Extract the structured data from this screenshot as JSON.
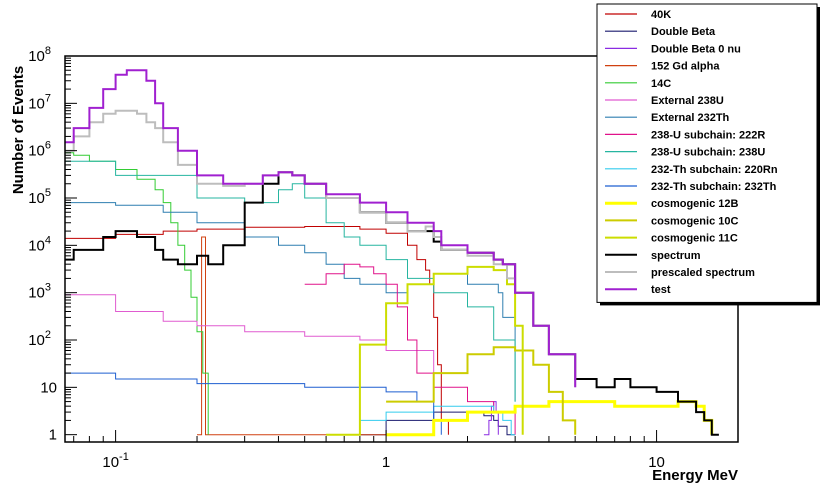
{
  "chart_data": {
    "type": "line",
    "title": "",
    "xlabel": "Energy MeV",
    "ylabel": "Number of Events",
    "xscale": "log",
    "yscale": "log",
    "xlim": [
      0.065,
      20
    ],
    "ylim": [
      0.7,
      100000000
    ],
    "x_ticks": [
      {
        "value": 0.1,
        "base": "10",
        "exp": "-1"
      },
      {
        "value": 1,
        "base": "1",
        "exp": ""
      },
      {
        "value": 10,
        "base": "10",
        "exp": ""
      }
    ],
    "y_ticks": [
      {
        "value": 1,
        "base": "1",
        "exp": ""
      },
      {
        "value": 10,
        "base": "10",
        "exp": ""
      },
      {
        "value": 100,
        "base": "10",
        "exp": "2"
      },
      {
        "value": 1000,
        "base": "10",
        "exp": "3"
      },
      {
        "value": 10000,
        "base": "10",
        "exp": "4"
      },
      {
        "value": 100000,
        "base": "10",
        "exp": "5"
      },
      {
        "value": 1000000,
        "base": "10",
        "exp": "6"
      },
      {
        "value": 10000000,
        "base": "10",
        "exp": "7"
      },
      {
        "value": 100000000,
        "base": "10",
        "exp": "8"
      }
    ],
    "grid": false,
    "legend_position": "top-right",
    "series": [
      {
        "name": "40K",
        "color": "#c00000",
        "width": 1,
        "x": [
          0.065,
          0.1,
          0.15,
          0.2,
          0.21,
          0.3,
          0.5,
          0.8,
          1.0,
          1.2,
          1.3,
          1.4,
          1.45,
          1.5,
          1.55,
          1.6,
          1.7
        ],
        "y": [
          14000,
          17000,
          20000,
          22000,
          22000,
          24000,
          25000,
          22000,
          18000,
          10000,
          5000,
          3000,
          1500,
          300,
          30,
          2,
          1
        ]
      },
      {
        "name": "Double Beta",
        "color": "#1a1a6e",
        "width": 1,
        "x": [
          0.7,
          1.0,
          1.5,
          2.0,
          2.3,
          2.5,
          2.6,
          2.8,
          3.0
        ],
        "y": [
          1,
          2,
          3,
          3,
          2.5,
          2,
          1.5,
          1,
          1
        ]
      },
      {
        "name": "Double Beta 0 nu",
        "color": "#8a2be2",
        "width": 1,
        "x": [
          2.3,
          2.4,
          2.45,
          2.5,
          2.55,
          2.6
        ],
        "y": [
          1,
          2,
          4,
          5,
          3,
          1
        ]
      },
      {
        "name": "152 Gd alpha",
        "color": "#d04010",
        "width": 1,
        "x": [
          0.2,
          0.205,
          0.208,
          0.212,
          0.215,
          0.22,
          0.3,
          0.5,
          0.8,
          1.0
        ],
        "y": [
          1,
          1,
          15000,
          15000,
          1,
          1,
          1,
          1,
          1,
          1
        ]
      },
      {
        "name": "14C",
        "color": "#33cc33",
        "width": 1,
        "x": [
          0.065,
          0.07,
          0.08,
          0.1,
          0.12,
          0.14,
          0.15,
          0.16,
          0.17,
          0.18,
          0.19,
          0.2,
          0.21,
          0.22
        ],
        "y": [
          900000,
          800000,
          600000,
          400000,
          250000,
          150000,
          80000,
          30000,
          10000,
          3000,
          800,
          150,
          20,
          1
        ]
      },
      {
        "name": "External 238U",
        "color": "#e05bd0",
        "width": 1,
        "x": [
          0.065,
          0.1,
          0.15,
          0.2,
          0.3,
          0.5,
          0.8,
          1.0,
          1.5
        ],
        "y": [
          900,
          400,
          250,
          200,
          150,
          120,
          100,
          60,
          20
        ]
      },
      {
        "name": "External 232Th",
        "color": "#2f7fb0",
        "width": 1,
        "x": [
          0.065,
          0.1,
          0.15,
          0.2,
          0.3,
          0.4,
          0.5,
          0.6,
          0.7,
          0.8,
          1.0,
          1.2,
          1.5,
          2.0,
          2.5,
          2.6,
          2.7,
          3.0
        ],
        "y": [
          80000,
          70000,
          50000,
          30000,
          15000,
          10000,
          7000,
          4000,
          2000,
          1500,
          1000,
          1500,
          2500,
          1500,
          1500,
          1000,
          300,
          5
        ]
      },
      {
        "name": "238-U subchain: 222R",
        "color": "#e0128a",
        "width": 1,
        "x": [
          0.5,
          0.6,
          0.7,
          0.8,
          0.9,
          1.0,
          1.1,
          1.2,
          1.3,
          1.5,
          2.0,
          2.5,
          3.0
        ],
        "y": [
          1500,
          2500,
          4000,
          3500,
          2500,
          1500,
          500,
          100,
          20,
          10,
          5,
          3,
          1
        ]
      },
      {
        "name": "238-U subchain: 238U",
        "color": "#26b5a0",
        "width": 1,
        "x": [
          0.065,
          0.1,
          0.2,
          0.3,
          0.4,
          0.45,
          0.5,
          0.6,
          0.7,
          0.8,
          1.0,
          1.2,
          1.5,
          2.0,
          2.5,
          3.0
        ],
        "y": [
          600000,
          300000,
          100000,
          80000,
          150000,
          200000,
          100000,
          30000,
          15000,
          10000,
          5000,
          2000,
          1000,
          500,
          100,
          5
        ]
      },
      {
        "name": "232-Th subchain: 220Rn",
        "color": "#33ccee",
        "width": 1,
        "x": [
          0.8,
          1.0,
          1.5,
          2.0,
          2.5,
          2.7,
          2.9,
          3.0
        ],
        "y": [
          2,
          3,
          4,
          4,
          3,
          2,
          1,
          1
        ]
      },
      {
        "name": "232-Th subchain: 232Th",
        "color": "#1f5fd0",
        "width": 1,
        "x": [
          0.065,
          0.1,
          0.15,
          0.2,
          0.3,
          0.5,
          0.7,
          1.0,
          1.3,
          1.5,
          1.6
        ],
        "y": [
          20,
          15,
          15,
          12,
          12,
          10,
          10,
          8,
          5,
          2,
          1
        ]
      },
      {
        "name": "cosmogenic 12B",
        "color": "#ffff00",
        "width": 3,
        "x": [
          1.0,
          1.5,
          2.0,
          3.0,
          4.0,
          5.0,
          7.0,
          10.0,
          12.0,
          14.0,
          15.0,
          16.0
        ],
        "y": [
          1,
          2,
          3,
          4,
          5,
          5,
          4,
          4,
          5,
          4,
          2,
          1
        ]
      },
      {
        "name": "cosmogenic 10C",
        "color": "#cccc00",
        "width": 2,
        "x": [
          1.0,
          1.5,
          2.0,
          2.5,
          3.0,
          3.5,
          4.0,
          4.5,
          5.0
        ],
        "y": [
          5,
          20,
          50,
          70,
          60,
          30,
          8,
          2,
          1
        ]
      },
      {
        "name": "cosmogenic 11C",
        "color": "#ccdd00",
        "width": 2,
        "x": [
          0.6,
          0.8,
          1.0,
          1.2,
          1.5,
          2.0,
          2.5,
          2.8,
          3.0,
          3.2
        ],
        "y": [
          1,
          80,
          600,
          1500,
          2500,
          3500,
          3000,
          1500,
          200,
          1
        ]
      },
      {
        "name": "spectrum",
        "color": "#000000",
        "width": 2,
        "x": [
          0.065,
          0.07,
          0.09,
          0.1,
          0.12,
          0.14,
          0.15,
          0.17,
          0.2,
          0.22,
          0.25,
          0.3,
          0.35,
          0.4,
          0.45,
          0.5,
          0.6,
          0.8,
          1.0,
          1.2,
          1.4,
          1.5,
          1.6,
          2.0,
          2.5,
          2.7,
          3.0,
          3.5,
          4.0,
          5.0,
          6.0,
          7.0,
          8.0,
          10.0,
          12.0,
          14.0,
          15.0,
          16.0,
          17.0
        ],
        "y": [
          5000,
          8000,
          15000,
          20000,
          15000,
          8000,
          5000,
          4000,
          6000,
          4000,
          10000,
          80000,
          200000,
          350000,
          300000,
          200000,
          100000,
          50000,
          30000,
          20000,
          20000,
          12000,
          8000,
          7000,
          5000,
          4000,
          1000,
          200,
          50,
          15,
          10,
          15,
          10,
          8,
          5,
          3,
          2,
          1,
          1
        ]
      },
      {
        "name": "prescaled spectrum",
        "color": "#bdbdbd",
        "width": 2,
        "x": [
          0.065,
          0.07,
          0.08,
          0.09,
          0.1,
          0.11,
          0.12,
          0.13,
          0.14,
          0.15,
          0.17,
          0.2,
          0.25,
          0.3,
          0.35,
          0.4,
          0.45,
          0.5,
          0.6,
          0.8,
          1.0,
          1.2,
          1.4,
          1.5,
          1.6,
          2.0,
          2.5,
          2.8,
          3.0,
          3.5,
          4.0,
          5.0
        ],
        "y": [
          1000000,
          2000000,
          4000000,
          6000000,
          7000000,
          7000000,
          6000000,
          4000000,
          3000000,
          1500000,
          500000,
          200000,
          180000,
          200000,
          300000,
          350000,
          300000,
          200000,
          100000,
          50000,
          30000,
          20000,
          25000,
          15000,
          8000,
          6000,
          4000,
          2000,
          1000,
          200,
          50,
          10
        ]
      },
      {
        "name": "test",
        "color": "#a020d0",
        "width": 2,
        "x": [
          0.065,
          0.07,
          0.08,
          0.09,
          0.1,
          0.11,
          0.12,
          0.13,
          0.14,
          0.15,
          0.17,
          0.2,
          0.25,
          0.3,
          0.35,
          0.4,
          0.45,
          0.5,
          0.6,
          0.8,
          1.0,
          1.2,
          1.4,
          1.5,
          1.6,
          2.0,
          2.5,
          2.7,
          3.0,
          3.5,
          4.0,
          5.0
        ],
        "y": [
          1500000,
          3000000,
          8000000,
          20000000,
          40000000,
          50000000,
          50000000,
          30000000,
          10000000,
          3000000,
          1000000,
          300000,
          200000,
          200000,
          300000,
          350000,
          300000,
          200000,
          120000,
          80000,
          50000,
          30000,
          30000,
          20000,
          10000,
          7000,
          5000,
          4000,
          1000,
          200,
          50,
          10
        ]
      }
    ]
  }
}
